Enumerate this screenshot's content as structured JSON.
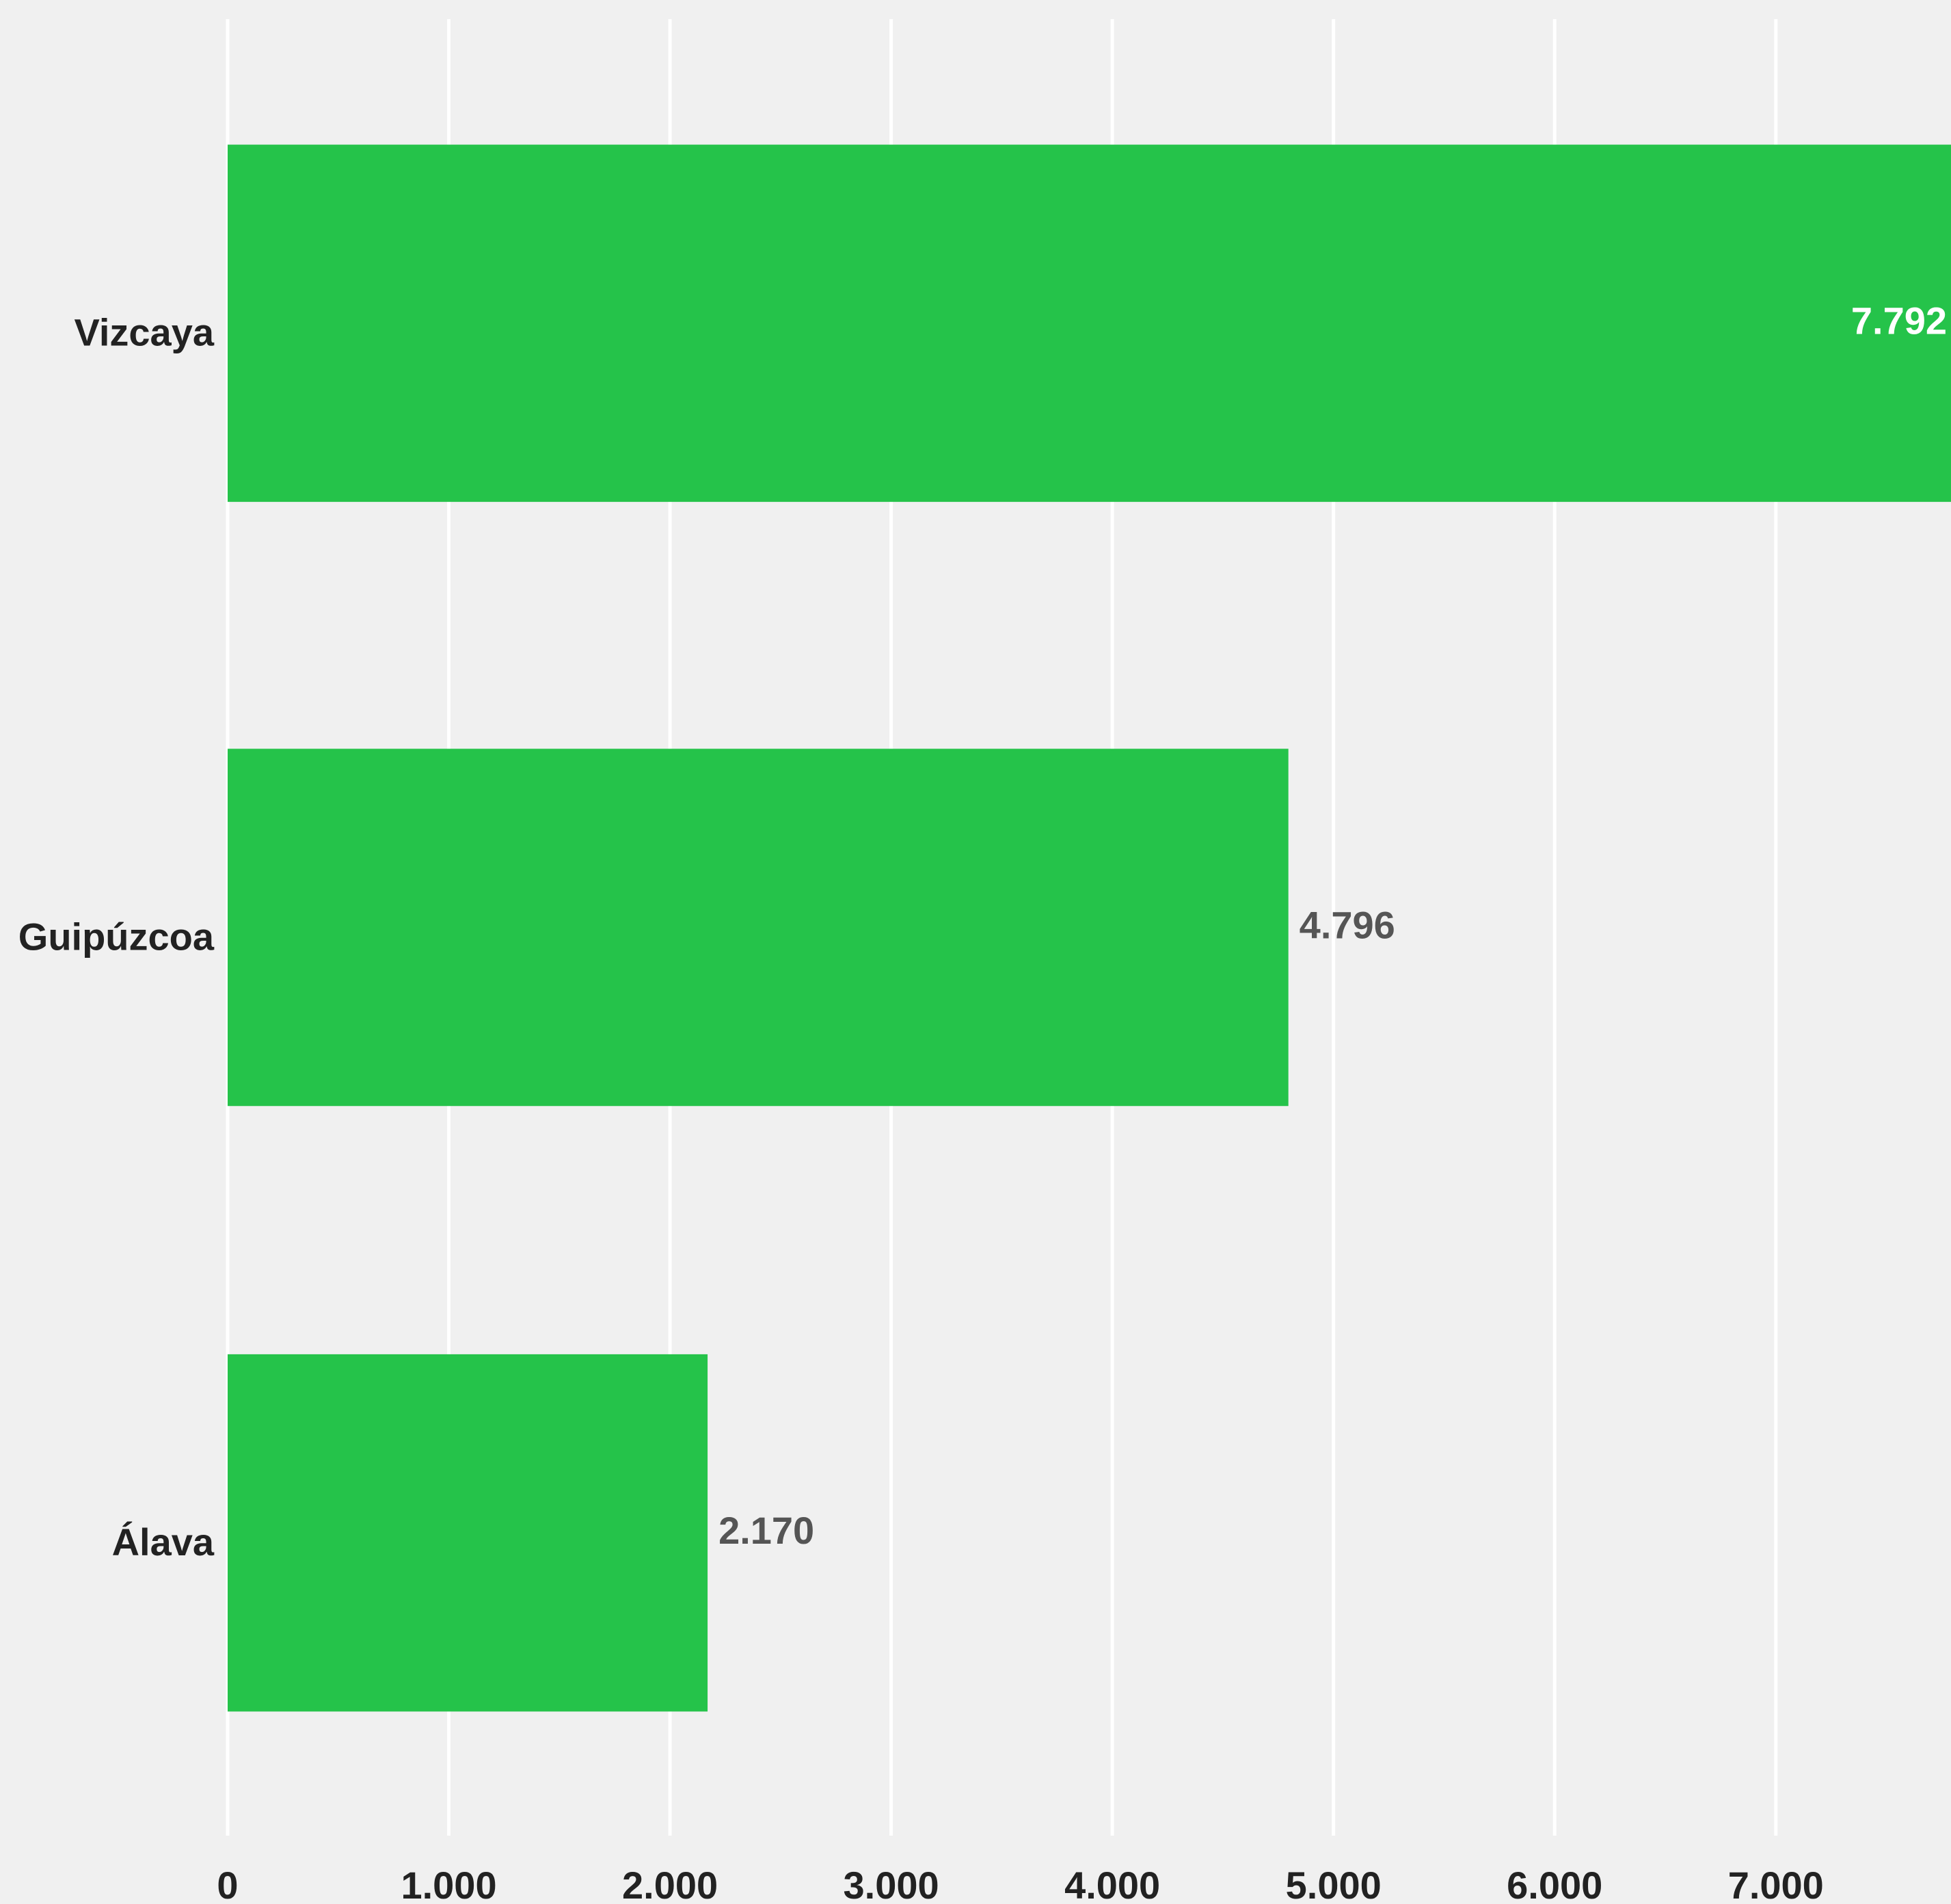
{
  "chart_data": {
    "type": "bar",
    "orientation": "horizontal",
    "categories": [
      "Vizcaya",
      "Guipúzcoa",
      "Álava"
    ],
    "values": [
      7792,
      4796,
      2170
    ],
    "value_labels": [
      "7.792",
      "4.796",
      "2.170"
    ],
    "x_ticks": [
      0,
      1000,
      2000,
      3000,
      4000,
      5000,
      6000,
      7000
    ],
    "x_tick_labels": [
      "0",
      "1.000",
      "2.000",
      "3.000",
      "4.000",
      "5.000",
      "6.000",
      "7.000"
    ],
    "xlim": [
      0,
      7792
    ],
    "grid": "vertical",
    "colors": {
      "bar": "#25c34a",
      "background": "#f0f0f0",
      "grid": "#ffffff",
      "label_inside": "#ffffff",
      "label_outside": "#555555",
      "text": "#222222"
    }
  }
}
